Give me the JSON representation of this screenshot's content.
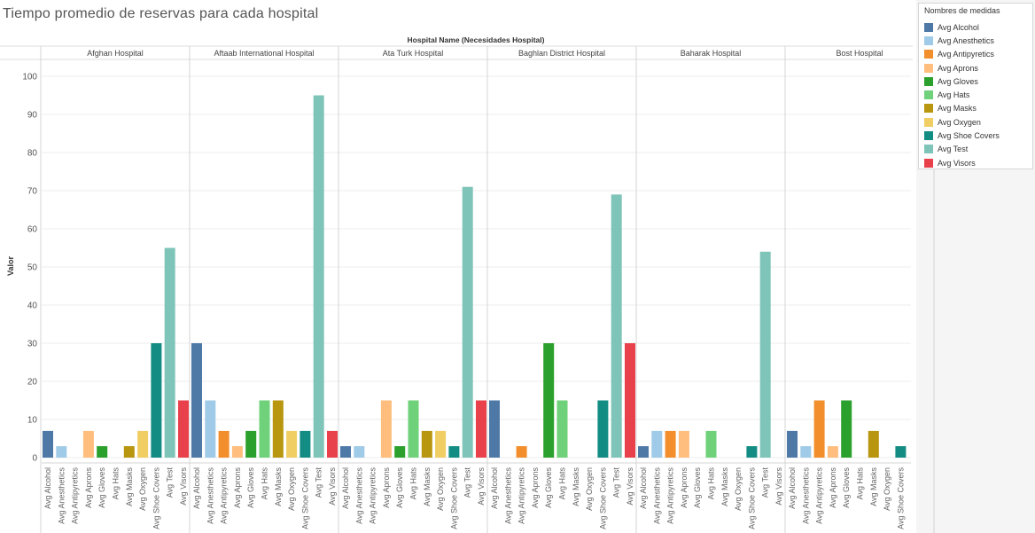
{
  "title": "Tiempo promedio de reservas para cada hospital",
  "legend": {
    "title": "Nombres de medidas",
    "items": [
      {
        "label": "Avg Alcohol",
        "color": "#4e79a7"
      },
      {
        "label": "Avg Anesthetics",
        "color": "#a0cbe8"
      },
      {
        "label": "Avg Antipyretics",
        "color": "#f28e2b"
      },
      {
        "label": "Avg Aprons",
        "color": "#ffbe7d"
      },
      {
        "label": "Avg Gloves",
        "color": "#2ca02c"
      },
      {
        "label": "Avg Hats",
        "color": "#6fd17a"
      },
      {
        "label": "Avg Masks",
        "color": "#b8960f"
      },
      {
        "label": "Avg Oxygen",
        "color": "#f1ce63"
      },
      {
        "label": "Avg Shoe Covers",
        "color": "#138d83"
      },
      {
        "label": "Avg Test",
        "color": "#7fc4b8"
      },
      {
        "label": "Avg Visors",
        "color": "#e8414b"
      }
    ]
  },
  "chart_data": {
    "type": "bar",
    "title": "Tiempo promedio de reservas para cada hospital",
    "column_header": "Hospital Name (Necesidades Hospital)",
    "ylabel": "Valor",
    "ylim": [
      0,
      100
    ],
    "yticks": [
      0,
      10,
      20,
      30,
      40,
      50,
      60,
      70,
      80,
      90,
      100
    ],
    "grid": true,
    "legend_position": "right",
    "measures": [
      "Avg Alcohol",
      "Avg Anesthetics",
      "Avg Antipyretics",
      "Avg Aprons",
      "Avg Gloves",
      "Avg Hats",
      "Avg Masks",
      "Avg Oxygen",
      "Avg Shoe Covers",
      "Avg Test",
      "Avg Visors"
    ],
    "panels": [
      {
        "hospital": "Afghan Hospital",
        "values": [
          7,
          3,
          0,
          7,
          3,
          0,
          3,
          7,
          30,
          55,
          15
        ]
      },
      {
        "hospital": "Aftaab International Hospital",
        "values": [
          30,
          15,
          7,
          3,
          7,
          15,
          15,
          7,
          7,
          95,
          7
        ]
      },
      {
        "hospital": "Ata Turk Hospital",
        "values": [
          3,
          3,
          0,
          15,
          3,
          15,
          7,
          7,
          3,
          71,
          15
        ]
      },
      {
        "hospital": "Baghlan District Hospital",
        "values": [
          15,
          0,
          3,
          0,
          30,
          15,
          0,
          0,
          15,
          69,
          30
        ]
      },
      {
        "hospital": "Baharak Hospital",
        "values": [
          3,
          7,
          7,
          7,
          0,
          7,
          0,
          0,
          3,
          54,
          0
        ]
      },
      {
        "hospital": "Bost Hospital",
        "values": [
          7,
          3,
          15,
          3,
          15,
          0,
          7,
          0,
          3,
          null,
          null
        ]
      }
    ]
  }
}
